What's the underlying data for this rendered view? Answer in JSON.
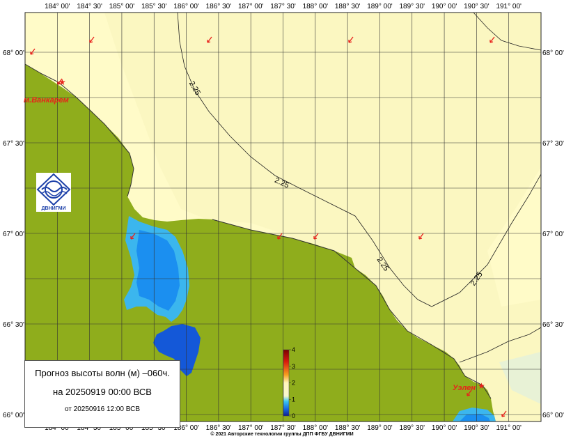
{
  "map": {
    "lon_labels": [
      "184° 00'",
      "184° 30'",
      "185° 00'",
      "185° 30'",
      "186° 00'",
      "186° 30'",
      "187° 00'",
      "187° 30'",
      "188° 00'",
      "188° 30'",
      "189° 00'",
      "189° 30'",
      "190° 00'",
      "190° 30'",
      "191° 00'"
    ],
    "lat_labels_left": [
      "68° 00'",
      "67° 30'",
      "67° 00'",
      "66° 30'",
      "66° 00'"
    ],
    "lat_labels_right": [
      "68° 00'",
      "67° 30'",
      "67° 00'",
      "66° 30'",
      "66° 00'"
    ],
    "isoline_value": "2.25",
    "places": {
      "vankarem": "м.Ванкарем",
      "uelen": "Уэлен"
    },
    "colors": {
      "land": "#8fad1c",
      "sea_low": "#fffbc8",
      "sea_mid": "#f9f5bd",
      "lagoon_light": "#3bb6ee",
      "lagoon_mid": "#1b8ff0",
      "lagoon_dark": "#1458d8",
      "arrow": "#e8211b"
    }
  },
  "colorbar": {
    "ticks": [
      "4",
      "3",
      "2",
      "1",
      "0"
    ],
    "colors": [
      "#7a0000",
      "#d81a0c",
      "#f7a020",
      "#fff6bb",
      "#f9f7d0",
      "#3bc6f0",
      "#1565e0",
      "#101e8c"
    ]
  },
  "info": {
    "line1": "Прогноз высоты волн (м) –060ч.",
    "line2": "на 20250919 00:00 ВСВ",
    "line3": "от 20250916 12:00 ВСВ"
  },
  "logo": {
    "text": "ДВНИГМИ"
  },
  "footer": {
    "copyright": "© 2021 Авторские технологии группы ДПП ФГБУ ДВНИГМИ"
  }
}
